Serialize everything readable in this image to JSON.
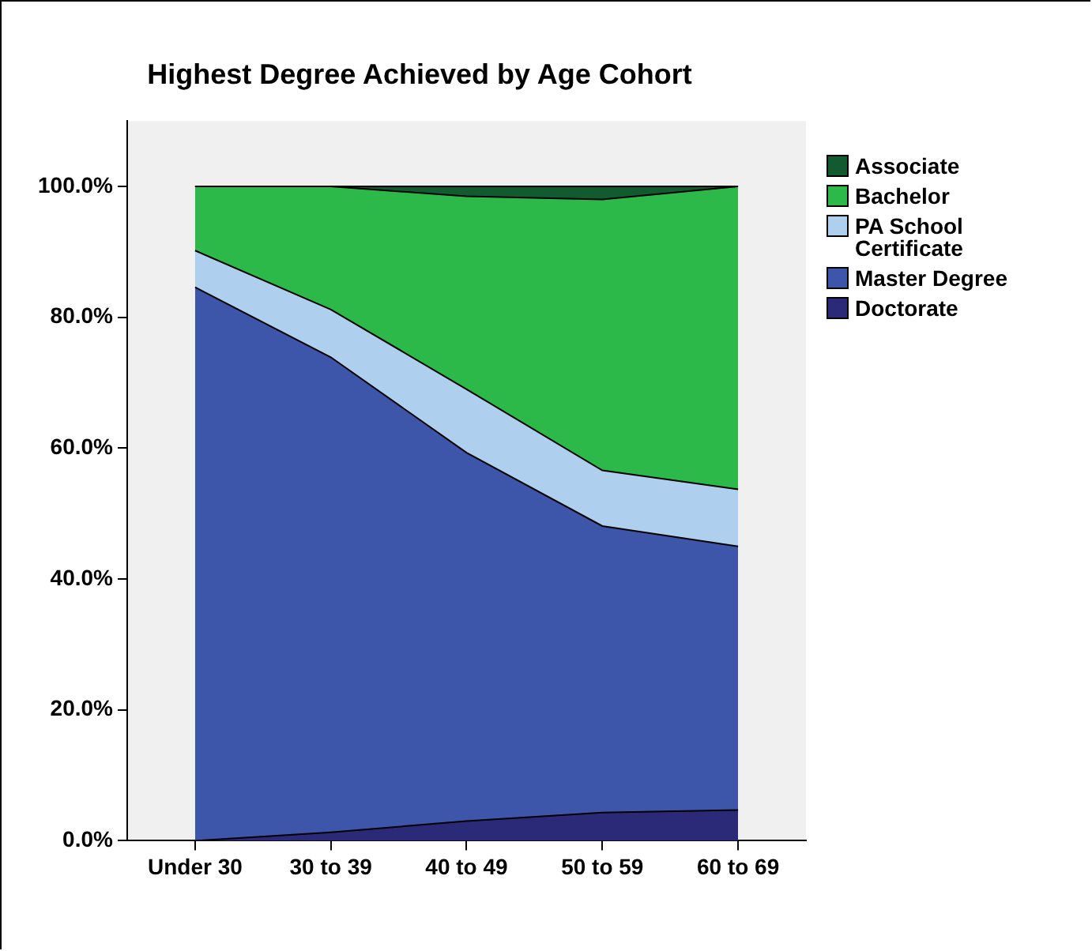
{
  "chart_data": {
    "type": "area",
    "title": "Highest Degree Achieved by Age Cohort",
    "categories": [
      "Under 30",
      "30 to 39",
      "40 to 49",
      "50 to 59",
      "60 to 69"
    ],
    "stacked": true,
    "series": [
      {
        "name": "Doctorate",
        "color": "#2a2a78",
        "values": [
          0,
          1.3,
          3.0,
          4.3,
          4.7
        ]
      },
      {
        "name": "Master Degree",
        "color": "#3d56aa",
        "values": [
          84.6,
          72.6,
          56.3,
          43.8,
          40.3
        ]
      },
      {
        "name": "PA School Certificate",
        "color": "#aed0ee",
        "values": [
          5.6,
          7.3,
          9.7,
          8.5,
          8.7
        ]
      },
      {
        "name": "Bachelor",
        "color": "#2db84a",
        "values": [
          9.8,
          18.8,
          29.5,
          41.4,
          46.3
        ]
      },
      {
        "name": "Associate",
        "color": "#125a30",
        "values": [
          0,
          0,
          1.5,
          2.0,
          0
        ]
      }
    ],
    "ylim": [
      0,
      110
    ],
    "yticks": [
      {
        "value": 0,
        "label": "0.0%"
      },
      {
        "value": 20,
        "label": "20.0%"
      },
      {
        "value": 40,
        "label": "40.0%"
      },
      {
        "value": 60,
        "label": "60.0%"
      },
      {
        "value": 80,
        "label": "80.0%"
      },
      {
        "value": 100,
        "label": "100.0%"
      }
    ],
    "grid": false,
    "legend": "right"
  }
}
